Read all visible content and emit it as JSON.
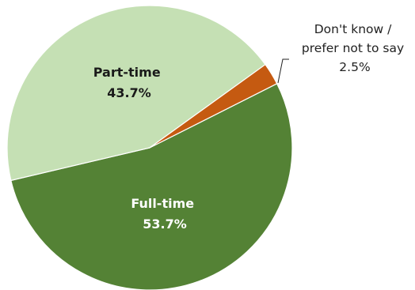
{
  "chart_data": {
    "type": "pie",
    "slices": [
      {
        "label": "Full-time",
        "value": 53.7,
        "value_label": "53.7%",
        "color": "#548235",
        "label_color": "#ffffff"
      },
      {
        "label": "Part-time",
        "value": 43.7,
        "value_label": "43.7%",
        "color": "#c5e0b4",
        "label_color": "#1a1a1a"
      },
      {
        "label_lines": [
          "Don't know /",
          "prefer not to say"
        ],
        "value": 2.5,
        "value_label": "2.5%",
        "color": "#c55a11",
        "label_color": "#222222"
      }
    ]
  }
}
